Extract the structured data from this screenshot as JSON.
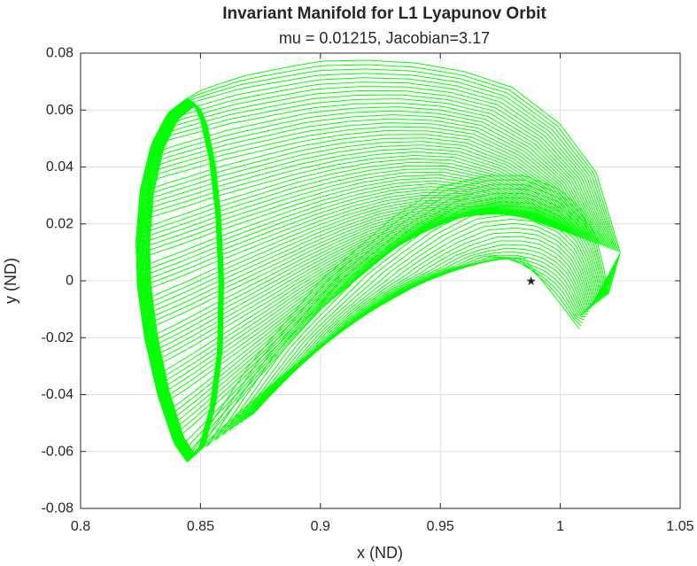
{
  "chart_data": {
    "type": "line",
    "title": "Invariant Manifold for L1 Lyapunov Orbit",
    "subtitle": "mu = 0.01215, Jacobian=3.17",
    "xlabel": "x (ND)",
    "ylabel": "y (ND)",
    "xlim": [
      0.8,
      1.05
    ],
    "ylim": [
      -0.08,
      0.08
    ],
    "grid": true,
    "x_ticks": [
      0.8,
      0.85,
      0.9,
      0.95,
      1,
      1.05
    ],
    "x_tick_labels": [
      "0.8",
      "0.85",
      "0.9",
      "0.95",
      "1",
      "1.05"
    ],
    "y_ticks": [
      -0.08,
      -0.06,
      -0.04,
      -0.02,
      0,
      0.02,
      0.04,
      0.06,
      0.08
    ],
    "y_tick_labels": [
      "-0.08",
      "-0.06",
      "-0.04",
      "-0.02",
      "0",
      "0.02",
      "0.04",
      "0.06",
      "0.08"
    ],
    "series_color": "#00ff00",
    "marker_color": "#ff0000",
    "lyapunov_orbit": {
      "x": [
        0.8444,
        0.8365,
        0.8296,
        0.825,
        0.8232,
        0.8238,
        0.8268,
        0.8322,
        0.839,
        0.8444,
        0.849,
        0.854,
        0.8572,
        0.8578,
        0.8565,
        0.854,
        0.85,
        0.847,
        0.8444
      ],
      "y": [
        0.064,
        0.059,
        0.048,
        0.032,
        0.014,
        -0.002,
        -0.02,
        -0.04,
        -0.057,
        -0.0635,
        -0.06,
        -0.045,
        -0.025,
        0.0,
        0.023,
        0.042,
        0.057,
        0.0625,
        0.064
      ]
    },
    "manifold_edges": [
      {
        "name": "",
        "x": [
          0.8444,
          0.86,
          0.88,
          0.9,
          0.92,
          0.94,
          0.96,
          0.98,
          1.0,
          1.015,
          1.025
        ],
        "y": [
          0.064,
          0.072,
          0.076,
          0.0772,
          0.0775,
          0.0765,
          0.0735,
          0.068,
          0.055,
          0.038,
          0.01
        ]
      },
      {
        "name": "",
        "x": [
          0.8444,
          0.87,
          0.9,
          0.93,
          0.95,
          0.965,
          0.975,
          0.98
        ],
        "y": [
          -0.063,
          -0.038,
          -0.01,
          0.011,
          0.021,
          0.024,
          0.0245,
          0.024
        ]
      },
      {
        "name": "",
        "x": [
          0.8444,
          0.87,
          0.9,
          0.93,
          0.95,
          0.97,
          0.985,
          1.0,
          1.01,
          1.015,
          1.018,
          1.02,
          1.025
        ],
        "y": [
          -0.063,
          -0.03,
          0.0,
          0.022,
          0.033,
          0.037,
          0.037,
          0.032,
          0.024,
          0.015,
          0.005,
          -0.005,
          0.01
        ]
      },
      {
        "name": "",
        "x": [
          0.955,
          0.97,
          0.985,
          1.0,
          1.008
        ],
        "y": [
          0.002,
          0.008,
          0.008,
          -0.008,
          -0.017
        ]
      }
    ],
    "marker": {
      "label": "★",
      "x": 0.98785,
      "y": 0.0
    }
  }
}
